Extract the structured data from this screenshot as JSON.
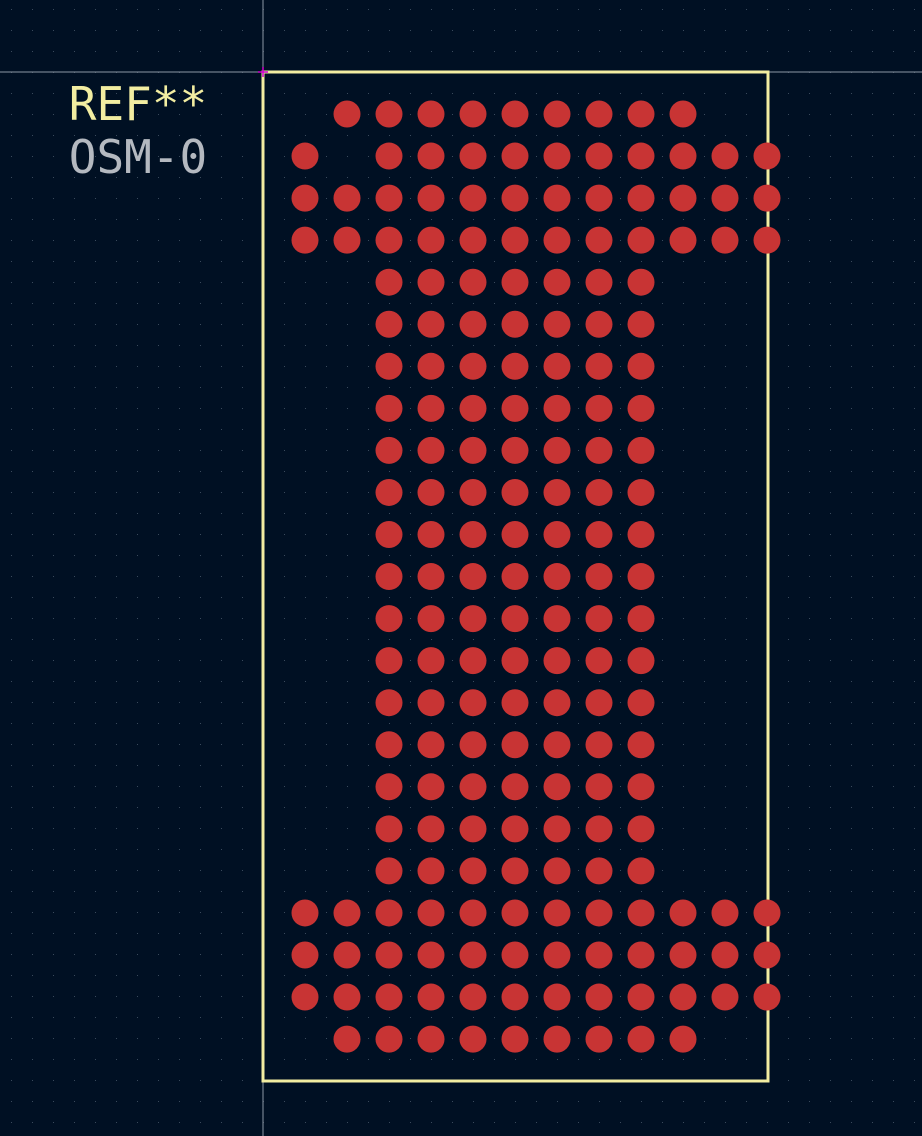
{
  "footprint": {
    "reference": "REF**",
    "value": "OSM-0"
  },
  "colors": {
    "background": "#001023",
    "grid_dot": "#3a4a5c",
    "crosshair": "#8d98a6",
    "anchor": "#d000d0",
    "courtyard": "#f2eda1",
    "pad": "#c83434",
    "reference_text": "#f2eda1",
    "value_text": "#b4b9c0"
  },
  "pad_grid": {
    "rows": [
      "011111111100",
      "101111111111",
      "111111111111",
      "111111111111",
      "001111111000",
      "001111111000",
      "001111111000",
      "001111111000",
      "001111111000",
      "001111111000",
      "001111111000",
      "001111111000",
      "001111111000",
      "001111111000",
      "001111111000",
      "001111111000",
      "001111111000",
      "001111111000",
      "001111111000",
      "111111111111",
      "111111111111",
      "111111111111",
      "011111111100"
    ]
  }
}
